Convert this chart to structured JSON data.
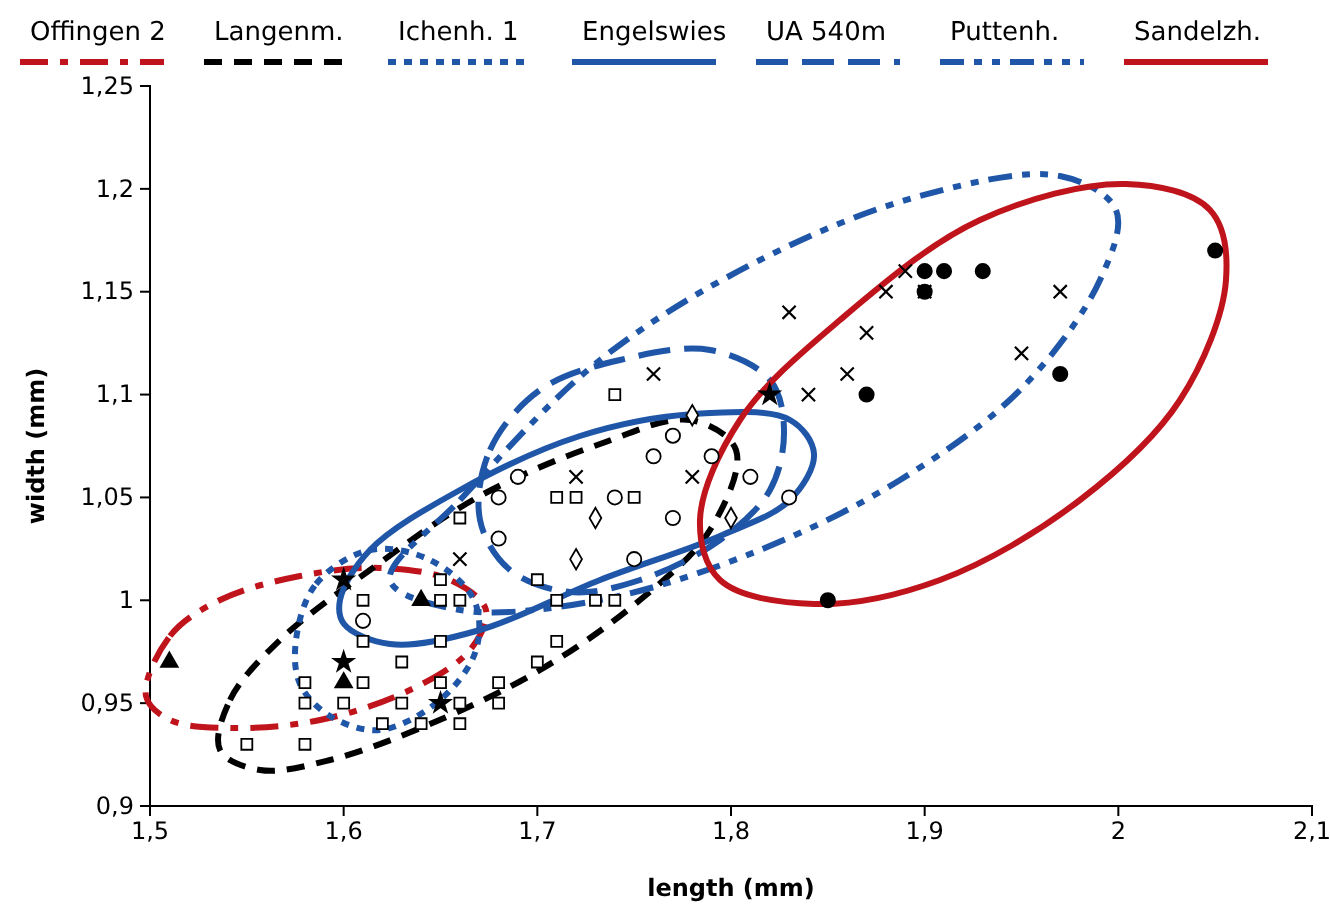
{
  "chart_data": {
    "type": "scatter",
    "xlabel": "length (mm)",
    "ylabel": "width (mm)",
    "grid": false,
    "annotations": [
      "Offingen 2",
      "Langenm.",
      "Ichenh. 1",
      "Engelswies",
      "UA 540m",
      "Puttenh.",
      "Sandelzh."
    ],
    "xlim": [
      1.5,
      2.1
    ],
    "xticks": [
      {
        "value": 1.5,
        "label": "1,5"
      },
      {
        "value": 1.6,
        "label": "1,6"
      },
      {
        "value": 1.7,
        "label": "1,7"
      },
      {
        "value": 1.8,
        "label": "1,8"
      },
      {
        "value": 1.9,
        "label": "1,9"
      },
      {
        "value": 2,
        "label": "2"
      },
      {
        "value": 2.1,
        "label": "2,1"
      }
    ],
    "ylim": [
      0.9,
      1.25
    ],
    "yticks": [
      {
        "value": 0.9,
        "label": "0,9"
      },
      {
        "value": 0.95,
        "label": "0,95"
      },
      {
        "value": 1,
        "label": "1"
      },
      {
        "value": 1.05,
        "label": "1,05"
      },
      {
        "value": 1.1,
        "label": "1,1"
      },
      {
        "value": 1.15,
        "label": "1,15"
      },
      {
        "value": 1.2,
        "label": "1,2"
      },
      {
        "value": 1.25,
        "label": "1,25"
      }
    ],
    "series": [
      {
        "marker": "triangle",
        "color": "#000000",
        "x": [
          1.51,
          1.64,
          1.6
        ],
        "values": [
          0.97,
          1.0,
          0.96
        ]
      },
      {
        "marker": "square",
        "color": "#ffffff",
        "x": [
          1.55,
          1.58,
          1.58,
          1.58,
          1.6,
          1.61,
          1.61,
          1.61,
          1.62,
          1.63,
          1.63,
          1.64,
          1.65,
          1.65,
          1.65,
          1.65,
          1.66,
          1.66,
          1.66,
          1.66,
          1.68,
          1.68,
          1.7,
          1.7,
          1.71,
          1.71,
          1.71,
          1.72,
          1.73,
          1.74,
          1.75,
          1.74
        ],
        "values": [
          0.93,
          0.93,
          0.96,
          0.95,
          0.95,
          0.96,
          0.98,
          1.0,
          0.94,
          0.97,
          0.95,
          0.94,
          0.98,
          0.96,
          1.01,
          1.0,
          1.0,
          0.95,
          0.94,
          1.04,
          0.96,
          0.95,
          0.97,
          1.01,
          0.98,
          1.0,
          1.05,
          1.05,
          1.0,
          1.1,
          1.05,
          1.0
        ]
      },
      {
        "marker": "circle",
        "color": "#ffffff",
        "x": [
          1.61,
          1.68,
          1.68,
          1.69,
          1.76,
          1.74,
          1.77,
          1.75,
          1.79,
          1.81,
          1.83,
          1.77
        ],
        "values": [
          0.99,
          1.05,
          1.03,
          1.06,
          1.07,
          1.05,
          1.04,
          1.02,
          1.07,
          1.06,
          1.05,
          1.08
        ]
      },
      {
        "marker": "diamond",
        "color": "#ffffff",
        "x": [
          1.73,
          1.72,
          1.78,
          1.8
        ],
        "values": [
          1.04,
          1.02,
          1.09,
          1.04
        ]
      },
      {
        "marker": "cross",
        "color": "#000000",
        "x": [
          1.66,
          1.72,
          1.78,
          1.76,
          1.83,
          1.84,
          1.86,
          1.87,
          1.88,
          1.89,
          1.9,
          1.97,
          1.95
        ],
        "values": [
          1.02,
          1.06,
          1.06,
          1.11,
          1.14,
          1.1,
          1.11,
          1.13,
          1.15,
          1.16,
          1.15,
          1.15,
          1.12
        ]
      },
      {
        "marker": "star",
        "color": "#000000",
        "x": [
          1.6,
          1.6,
          1.65,
          1.82
        ],
        "values": [
          1.01,
          0.97,
          0.95,
          1.1
        ]
      },
      {
        "marker": "circle",
        "color": "#000000",
        "x": [
          1.9,
          1.91,
          1.93,
          1.9,
          2.05,
          1.97,
          1.87,
          1.85
        ],
        "values": [
          1.16,
          1.16,
          1.16,
          1.15,
          1.17,
          1.11,
          1.1,
          1.0
        ]
      }
    ]
  }
}
